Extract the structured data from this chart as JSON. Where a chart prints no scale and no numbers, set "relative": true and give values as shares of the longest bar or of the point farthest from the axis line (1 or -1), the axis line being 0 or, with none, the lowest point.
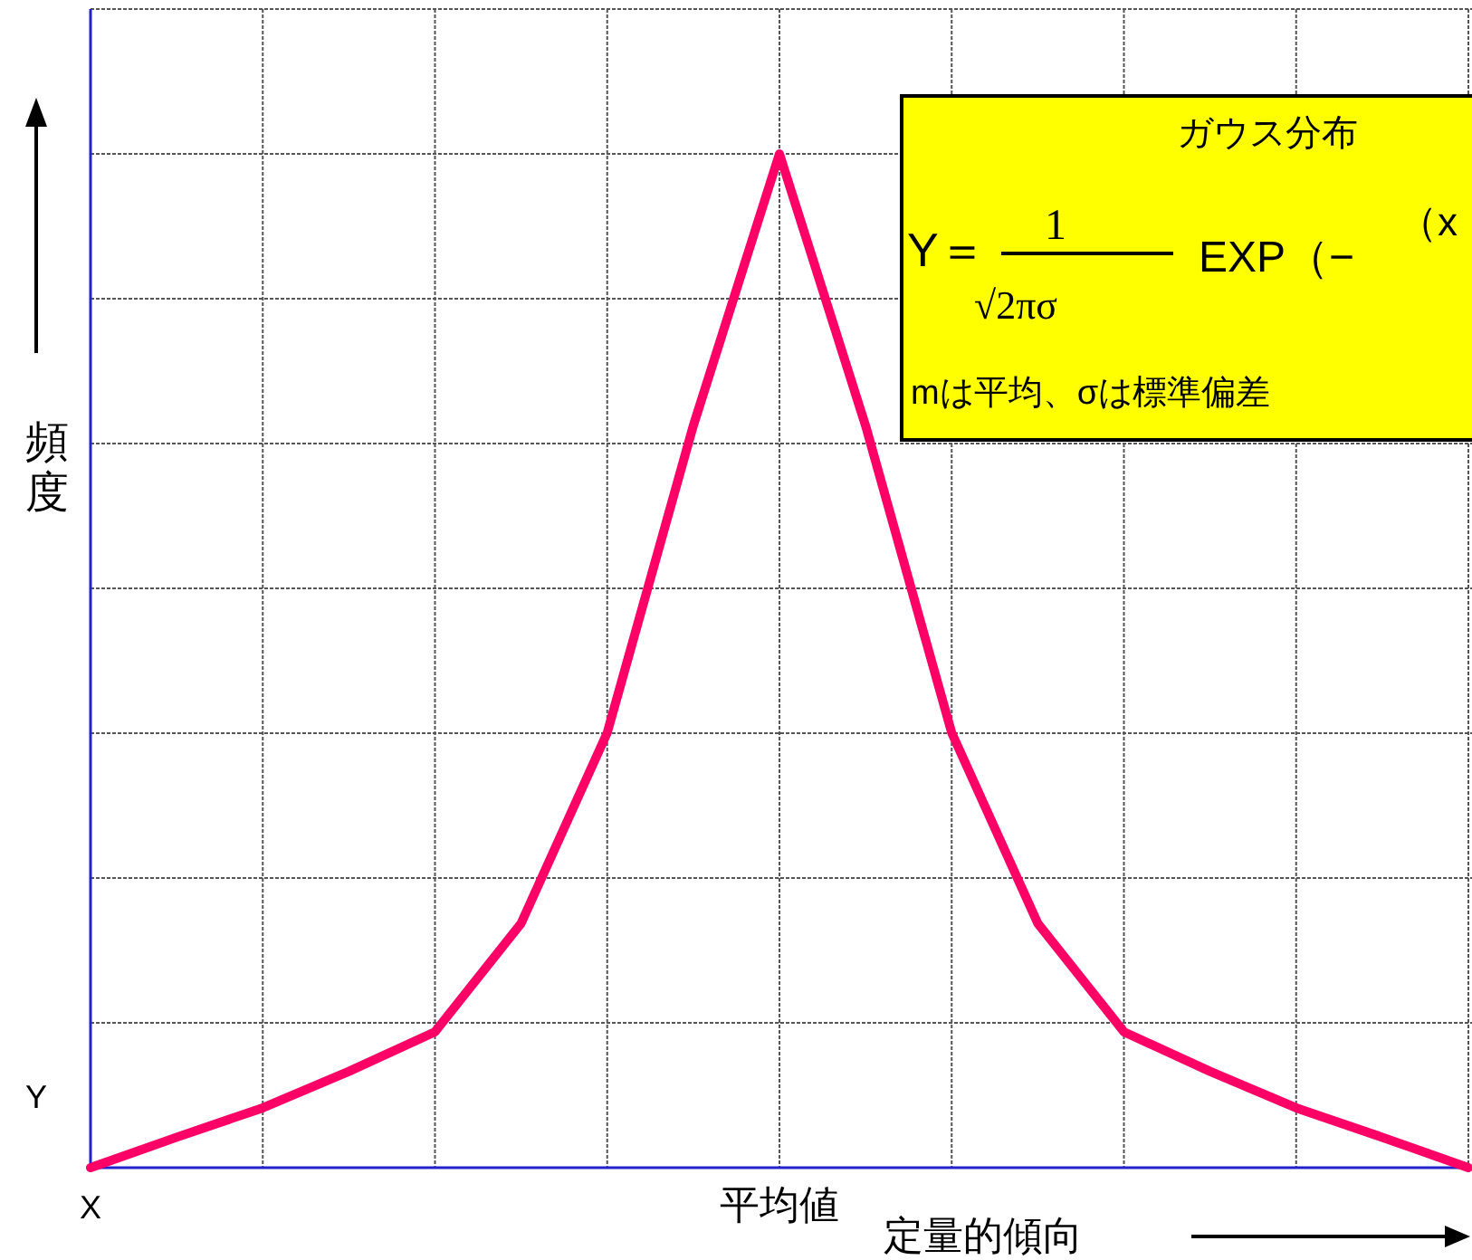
{
  "chart_data": {
    "type": "line",
    "relative": true,
    "categories": [
      "X",
      null,
      null,
      null,
      null,
      null,
      null,
      null,
      "平均値",
      null,
      null,
      null,
      null,
      null,
      null,
      null,
      null
    ],
    "series": [
      {
        "color": "#ff0066",
        "values": [
          0,
          0.03,
          0.059,
          0.095,
          0.134,
          0.241,
          0.429,
          0.732,
          1,
          0.732,
          0.429,
          0.241,
          0.134,
          0.095,
          0.059,
          0.03,
          0
        ]
      }
    ],
    "xlabel": "定量的傾向",
    "ylabel": "頻度",
    "grid": true,
    "marker": "none",
    "line_style": "solid",
    "annotations": [
      "Y",
      "ガウス分布",
      "Y＝",
      "1",
      "√2πσ",
      "EXP（−",
      "（x",
      "mは平均、σは標準偏差"
    ]
  }
}
